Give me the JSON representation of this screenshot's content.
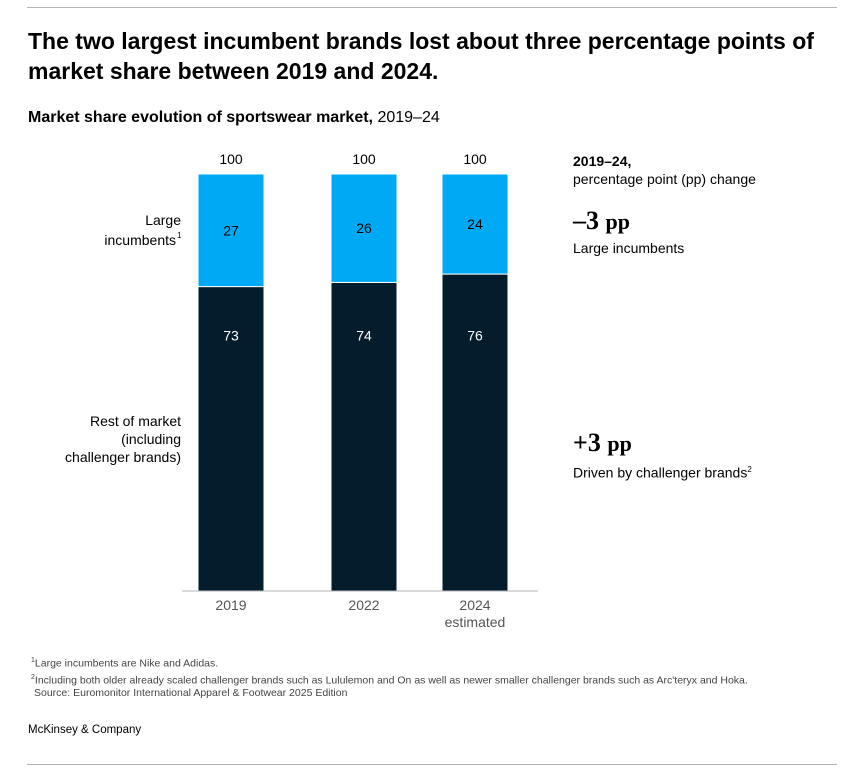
{
  "headline": "The two largest incumbent brands lost about three percentage points of market share between 2019 and 2024.",
  "subtitle_bold": "Market share evolution of sportswear market,",
  "subtitle_rest": " 2019–24",
  "chart_data": {
    "type": "bar",
    "stacked": true,
    "categories": [
      "2019",
      "2022",
      "2024"
    ],
    "category_sublabels": [
      "",
      "",
      "estimated"
    ],
    "totals": [
      "100",
      "100",
      "100"
    ],
    "series": [
      {
        "name": "Rest of market (including challenger brands)",
        "values": [
          73,
          74,
          76
        ],
        "color": "#051c2c"
      },
      {
        "name": "Large incumbents",
        "values": [
          27,
          26,
          24
        ],
        "color": "#00a9f4"
      }
    ],
    "segment_labels": {
      "large_line1": "Large",
      "large_line2": "incumbents",
      "large_footnote": "1",
      "rest_line1": "Rest of market",
      "rest_line2": "(including",
      "rest_line3": "challenger brands)"
    },
    "ylim": [
      0,
      100
    ]
  },
  "change_panel": {
    "heading_bold": "2019–24,",
    "heading_rest": "percentage point (pp) change",
    "large": {
      "value": "–3",
      "unit": "pp",
      "label": "Large incumbents"
    },
    "rest": {
      "value": "+3",
      "unit": "pp",
      "label": "Driven by challenger brands",
      "footnote": "2"
    }
  },
  "footnotes": {
    "n1_mark": "1",
    "n1": "Large incumbents are Nike and Adidas.",
    "n2_mark": "2",
    "n2": "Including both older already scaled challenger brands such as Lululemon and On as well as newer smaller challenger brands such as Arc'teryx and Hoka.",
    "source": "Source: Euromonitor International Apparel & Footwear 2025 Edition"
  },
  "brand": "McKinsey & Company"
}
